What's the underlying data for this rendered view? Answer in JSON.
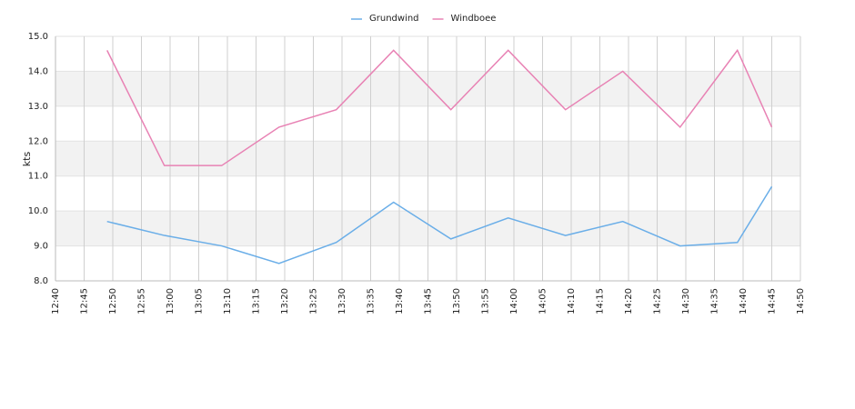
{
  "chart_data": {
    "type": "line",
    "y_label": "kts",
    "x": [
      "12:49",
      "12:59",
      "13:09",
      "13:19",
      "13:29",
      "13:39",
      "13:49",
      "13:59",
      "14:09",
      "14:19",
      "14:29",
      "14:39",
      "14:45"
    ],
    "series": [
      {
        "name": "Grundwind",
        "color": "#6aaee8",
        "values": [
          9.7,
          9.3,
          9.0,
          8.5,
          9.1,
          10.25,
          9.2,
          9.8,
          9.3,
          9.7,
          9.0,
          9.1,
          10.7
        ]
      },
      {
        "name": "Windboee",
        "color": "#e882b4",
        "values": [
          14.6,
          11.3,
          11.3,
          12.4,
          12.9,
          14.6,
          12.9,
          14.6,
          12.9,
          14.0,
          12.4,
          14.6,
          12.4
        ]
      }
    ],
    "xlim": [
      "12:40",
      "14:50"
    ],
    "xticks": [
      "12:40",
      "12:45",
      "12:50",
      "12:55",
      "13:00",
      "13:05",
      "13:10",
      "13:15",
      "13:20",
      "13:25",
      "13:30",
      "13:35",
      "13:40",
      "13:45",
      "13:50",
      "13:55",
      "14:00",
      "14:05",
      "14:10",
      "14:15",
      "14:20",
      "14:25",
      "14:30",
      "14:35",
      "14:40",
      "14:45",
      "14:50"
    ],
    "ylim": [
      8,
      15
    ],
    "yticks": [
      {
        "value": 8,
        "label": "8.0"
      },
      {
        "value": 9,
        "label": "9.0"
      },
      {
        "value": 10,
        "label": "10.0"
      },
      {
        "value": 11,
        "label": "11.0"
      },
      {
        "value": 12,
        "label": "12.0"
      },
      {
        "value": 13,
        "label": "13.0"
      },
      {
        "value": 14,
        "label": "14.0"
      },
      {
        "value": 15,
        "label": "15.0"
      }
    ],
    "grid": true
  }
}
